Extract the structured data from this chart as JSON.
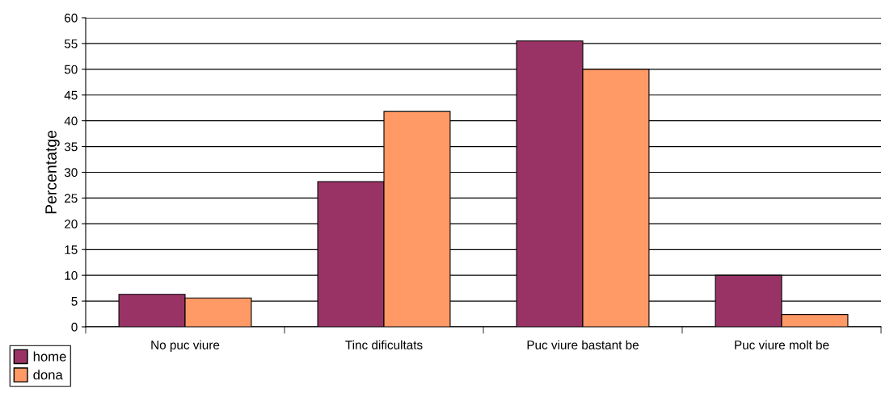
{
  "chart_data": {
    "type": "bar",
    "ylabel": "Percentatge",
    "categories": [
      "No puc viure",
      "Tinc dificultats",
      "Puc viure bastant be",
      "Puc viure molt be"
    ],
    "series": [
      {
        "name": "home",
        "color": "#993366",
        "values": [
          6.3,
          28.2,
          55.5,
          10.0
        ]
      },
      {
        "name": "dona",
        "color": "#ff9966",
        "values": [
          5.6,
          41.8,
          50.0,
          2.4
        ]
      }
    ],
    "ylim": [
      0,
      60
    ],
    "yticks": [
      0,
      5,
      10,
      15,
      20,
      25,
      30,
      35,
      40,
      45,
      50,
      55,
      60
    ],
    "grid": "y",
    "legend": "bottom left"
  }
}
